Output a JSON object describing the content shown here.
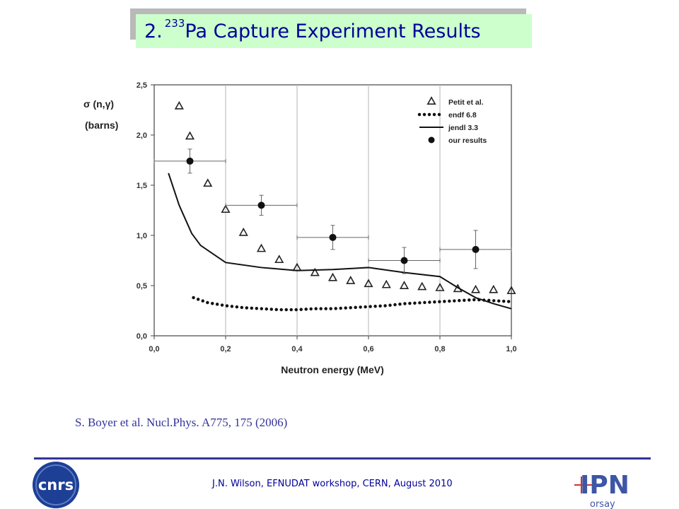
{
  "slide": {
    "title_prefix": "2. ",
    "title_sup": "233",
    "title_rest": "Pa Capture Experiment Results",
    "reference": "S. Boyer et al. Nucl.Phys. A775, 175 (2006)",
    "footer": "J.N. Wilson,  EFNUDAT workshop, CERN, August 2010",
    "logos": {
      "left": "cnrs-logo",
      "right": "ipn-orsay-logo"
    }
  },
  "chart_data": {
    "type": "scatter",
    "title": "",
    "xlabel": "Neutron energy (MeV)",
    "ylabel_line1": "σ (n,γ)",
    "ylabel_line2": "(barns)",
    "xlim": [
      0,
      1.0
    ],
    "ylim": [
      0,
      2.5
    ],
    "xticks": [
      "0,0",
      "0,2",
      "0,4",
      "0,6",
      "0,8",
      "1,0"
    ],
    "xtick_values": [
      0,
      0.2,
      0.4,
      0.6,
      0.8,
      1.0
    ],
    "yticks": [
      "0,0",
      "0,5",
      "1,0",
      "1,5",
      "2,0",
      "2,5"
    ],
    "ytick_values": [
      0,
      0.5,
      1.0,
      1.5,
      2.0,
      2.5
    ],
    "grid": "vertical",
    "legend_position": "top-right",
    "series": [
      {
        "name": "Petit et al.",
        "kind": "open-triangles",
        "x": [
          0.07,
          0.1,
          0.15,
          0.2,
          0.25,
          0.3,
          0.35,
          0.4,
          0.45,
          0.5,
          0.55,
          0.6,
          0.65,
          0.7,
          0.75,
          0.8,
          0.85,
          0.9,
          0.95,
          1.0
        ],
        "y": [
          2.29,
          1.99,
          1.52,
          1.26,
          1.03,
          0.87,
          0.76,
          0.68,
          0.63,
          0.58,
          0.55,
          0.52,
          0.51,
          0.5,
          0.49,
          0.48,
          0.47,
          0.46,
          0.46,
          0.45
        ]
      },
      {
        "name": "endf 6.8",
        "kind": "dotted-line",
        "x": [
          0.11,
          0.15,
          0.2,
          0.25,
          0.3,
          0.35,
          0.4,
          0.45,
          0.5,
          0.55,
          0.6,
          0.65,
          0.7,
          0.75,
          0.8,
          0.85,
          0.9,
          0.95,
          1.0
        ],
        "y": [
          0.38,
          0.33,
          0.3,
          0.28,
          0.27,
          0.26,
          0.26,
          0.27,
          0.27,
          0.28,
          0.29,
          0.3,
          0.32,
          0.33,
          0.34,
          0.35,
          0.36,
          0.35,
          0.34
        ]
      },
      {
        "name": "jendl 3.3",
        "kind": "solid-line",
        "x": [
          0.04,
          0.07,
          0.105,
          0.13,
          0.2,
          0.3,
          0.4,
          0.5,
          0.6,
          0.7,
          0.8,
          0.85,
          0.9,
          0.95,
          1.0
        ],
        "y": [
          1.62,
          1.3,
          1.02,
          0.9,
          0.73,
          0.68,
          0.65,
          0.66,
          0.68,
          0.63,
          0.59,
          0.48,
          0.38,
          0.32,
          0.27
        ]
      },
      {
        "name": "our results",
        "kind": "filled-circles-errorbars",
        "x": [
          0.1,
          0.3,
          0.5,
          0.7,
          0.9
        ],
        "y": [
          1.74,
          1.3,
          0.98,
          0.75,
          0.86
        ],
        "x_low": [
          0.0,
          0.2,
          0.4,
          0.6,
          0.8
        ],
        "x_high": [
          0.2,
          0.4,
          0.6,
          0.8,
          1.0
        ],
        "y_err": [
          0.12,
          0.1,
          0.12,
          0.13,
          0.19
        ]
      }
    ]
  }
}
